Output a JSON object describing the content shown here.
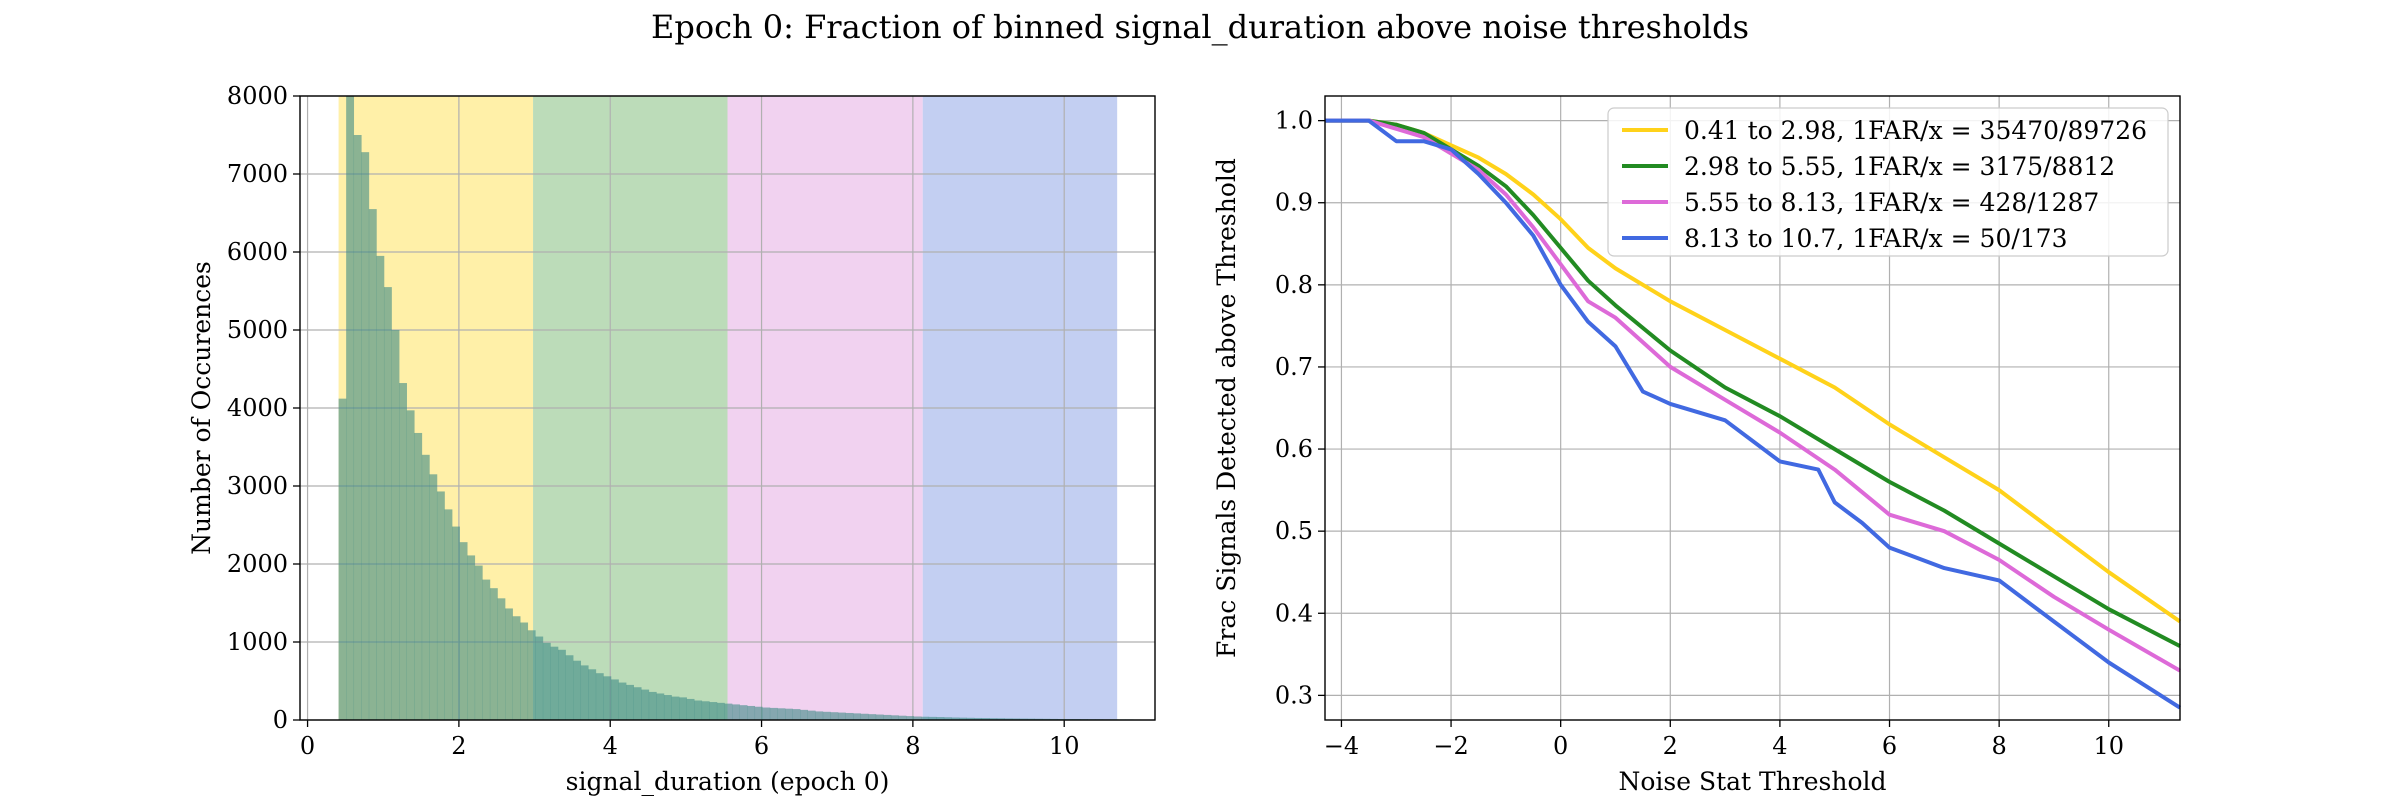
{
  "figure_title": "Epoch 0: Fraction of binned signal_duration above noise thresholds",
  "chart_data": [
    {
      "type": "bar",
      "title": "",
      "xlabel": "signal_duration (epoch 0)",
      "ylabel": "Number of Occurences",
      "xlim": [
        -0.1,
        11.2
      ],
      "ylim": [
        0,
        8000
      ],
      "xticks": [
        "0",
        "2",
        "4",
        "6",
        "8",
        "10"
      ],
      "yticks": [
        "0",
        "1000",
        "2000",
        "3000",
        "4000",
        "5000",
        "6000",
        "7000",
        "8000"
      ],
      "grid": true,
      "bands": [
        {
          "from": 0.41,
          "to": 2.98,
          "color": "#fff0a8"
        },
        {
          "from": 2.98,
          "to": 5.55,
          "color": "#bcdcb9"
        },
        {
          "from": 5.55,
          "to": 8.13,
          "color": "#f1d2f0"
        },
        {
          "from": 8.13,
          "to": 10.7,
          "color": "#c3cff2"
        }
      ],
      "hist_color": "#3e8a85",
      "bin_start": 0.41,
      "bin_width": 0.1,
      "values": [
        4120,
        8000,
        7500,
        7280,
        6550,
        5950,
        5550,
        5000,
        4320,
        3970,
        3680,
        3400,
        3150,
        2930,
        2700,
        2480,
        2280,
        2110,
        1980,
        1800,
        1690,
        1560,
        1430,
        1330,
        1250,
        1150,
        1070,
        990,
        940,
        900,
        830,
        760,
        700,
        650,
        600,
        560,
        520,
        480,
        450,
        420,
        390,
        360,
        340,
        320,
        300,
        290,
        270,
        250,
        240,
        230,
        220,
        210,
        200,
        190,
        180,
        170,
        160,
        155,
        150,
        145,
        140,
        130,
        120,
        110,
        105,
        100,
        95,
        90,
        85,
        80,
        75,
        70,
        65,
        60,
        55,
        50,
        45,
        42,
        40,
        38,
        35,
        32,
        30,
        28,
        26,
        25,
        23,
        22,
        20,
        19,
        18,
        17,
        16,
        15,
        14,
        13,
        12,
        12,
        11,
        10,
        10,
        9,
        9,
        8,
        8,
        7
      ]
    },
    {
      "type": "line",
      "title": "",
      "xlabel": "Noise Stat Threshold",
      "ylabel": "Frac Signals Detected above Threshold",
      "xlim": [
        -4.3,
        11.3
      ],
      "ylim": [
        0.27,
        1.03
      ],
      "xticks": [
        "−4",
        "−2",
        "0",
        "2",
        "4",
        "6",
        "8",
        "10"
      ],
      "yticks": [
        "0.3",
        "0.4",
        "0.5",
        "0.6",
        "0.7",
        "0.8",
        "0.9",
        "1.0"
      ],
      "grid": true,
      "legend_position": "top-right",
      "series": [
        {
          "name": "0.41 to 2.98, 1FAR/x = 35470/89726",
          "color": "#ffd21a",
          "x": [
            -4.3,
            -3.5,
            -3,
            -2.5,
            -2,
            -1.5,
            -1,
            -0.5,
            0,
            0.5,
            1,
            2,
            3,
            4,
            5,
            6,
            7,
            8,
            9,
            10,
            11.3
          ],
          "y": [
            1.0,
            1.0,
            0.995,
            0.985,
            0.97,
            0.955,
            0.935,
            0.91,
            0.88,
            0.845,
            0.82,
            0.78,
            0.745,
            0.71,
            0.675,
            0.63,
            0.59,
            0.55,
            0.5,
            0.45,
            0.39
          ]
        },
        {
          "name": "2.98 to 5.55, 1FAR/x = 3175/8812",
          "color": "#228b22",
          "x": [
            -4.3,
            -3.5,
            -3,
            -2.5,
            -2,
            -1.5,
            -1,
            -0.5,
            0,
            0.5,
            1,
            2,
            3,
            4,
            5,
            6,
            7,
            8,
            9,
            10,
            11.3
          ],
          "y": [
            1.0,
            1.0,
            0.995,
            0.985,
            0.965,
            0.945,
            0.92,
            0.885,
            0.845,
            0.805,
            0.775,
            0.72,
            0.675,
            0.64,
            0.6,
            0.56,
            0.525,
            0.485,
            0.445,
            0.405,
            0.36
          ]
        },
        {
          "name": "5.55 to 8.13, 1FAR/x = 428/1287",
          "color": "#dd6ad8",
          "x": [
            -4.3,
            -3.5,
            -3,
            -2.5,
            -2,
            -1.5,
            -1,
            -0.5,
            0,
            0.5,
            1,
            2,
            3,
            4,
            5,
            6,
            7,
            8,
            9,
            10,
            11.3
          ],
          "y": [
            1.0,
            1.0,
            0.99,
            0.98,
            0.96,
            0.94,
            0.91,
            0.87,
            0.825,
            0.78,
            0.76,
            0.7,
            0.66,
            0.62,
            0.575,
            0.52,
            0.5,
            0.465,
            0.42,
            0.38,
            0.33
          ]
        },
        {
          "name": "8.13 to 10.7, 1FAR/x = 50/173",
          "color": "#4169e1",
          "x": [
            -4.3,
            -3.5,
            -3,
            -2.5,
            -2,
            -1.5,
            -1,
            -0.5,
            0,
            0.5,
            1,
            1.5,
            2,
            3,
            4,
            4.7,
            5,
            5.5,
            6,
            7,
            8,
            9,
            10,
            11.3
          ],
          "y": [
            1.0,
            1.0,
            0.975,
            0.975,
            0.965,
            0.935,
            0.9,
            0.86,
            0.8,
            0.755,
            0.725,
            0.67,
            0.655,
            0.635,
            0.585,
            0.575,
            0.535,
            0.51,
            0.48,
            0.455,
            0.44,
            0.39,
            0.34,
            0.285
          ]
        }
      ]
    }
  ]
}
